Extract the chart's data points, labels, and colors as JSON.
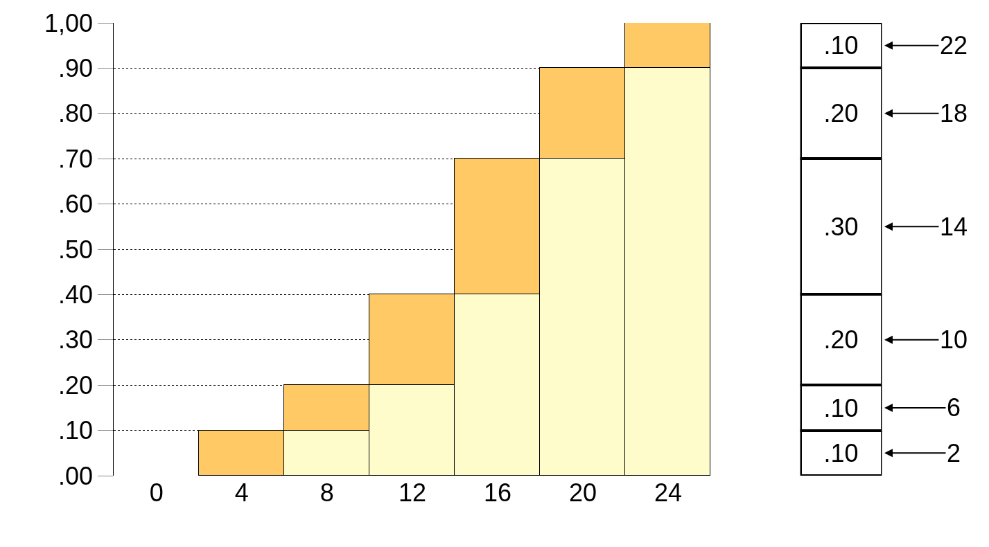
{
  "chart_data": [
    {
      "type": "bar",
      "stacked": true,
      "categories": [
        "0",
        "4",
        "8",
        "12",
        "16",
        "20",
        "24"
      ],
      "series": [
        {
          "color": "#fffccc",
          "values": [
            0,
            0,
            0.1,
            0.2,
            0.4,
            0.7,
            0.9
          ]
        },
        {
          "color": "#ffc966",
          "values": [
            0,
            0.1,
            0.1,
            0.2,
            0.3,
            0.2,
            0.1
          ]
        }
      ],
      "ylim": [
        0,
        1
      ],
      "yticks": [
        {
          "value": 0,
          "label": ".00"
        },
        {
          "value": 0.1,
          "label": ".10"
        },
        {
          "value": 0.2,
          "label": ".20"
        },
        {
          "value": 0.3,
          "label": ".30"
        },
        {
          "value": 0.4,
          "label": ".40"
        },
        {
          "value": 0.5,
          "label": ".50"
        },
        {
          "value": 0.6,
          "label": ".60"
        },
        {
          "value": 0.7,
          "label": ".70"
        },
        {
          "value": 0.8,
          "label": ".80"
        },
        {
          "value": 0.9,
          "label": ".90"
        },
        {
          "value": 1,
          "label": "1,00"
        }
      ],
      "grid": "y"
    },
    {
      "type": "bar",
      "stacked": true,
      "categories": [
        null
      ],
      "series": [
        {
          "color": "#ffffff",
          "values": [
            0.1
          ],
          "value_labels": [
            ".10"
          ]
        },
        {
          "color": "#ffffff",
          "values": [
            0.1
          ],
          "value_labels": [
            ".10"
          ]
        },
        {
          "color": "#ffffff",
          "values": [
            0.2
          ],
          "value_labels": [
            ".20"
          ]
        },
        {
          "color": "#ffffff",
          "values": [
            0.3
          ],
          "value_labels": [
            ".30"
          ]
        },
        {
          "color": "#ffffff",
          "values": [
            0.2
          ],
          "value_labels": [
            ".20"
          ]
        },
        {
          "color": "#ffffff",
          "values": [
            0.1
          ],
          "value_labels": [
            ".10"
          ]
        }
      ],
      "ylim": [
        0,
        1
      ],
      "tick_labels": false,
      "grid": "y",
      "annotations": [
        "2",
        "6",
        "10",
        "14",
        "18",
        "22"
      ]
    }
  ]
}
